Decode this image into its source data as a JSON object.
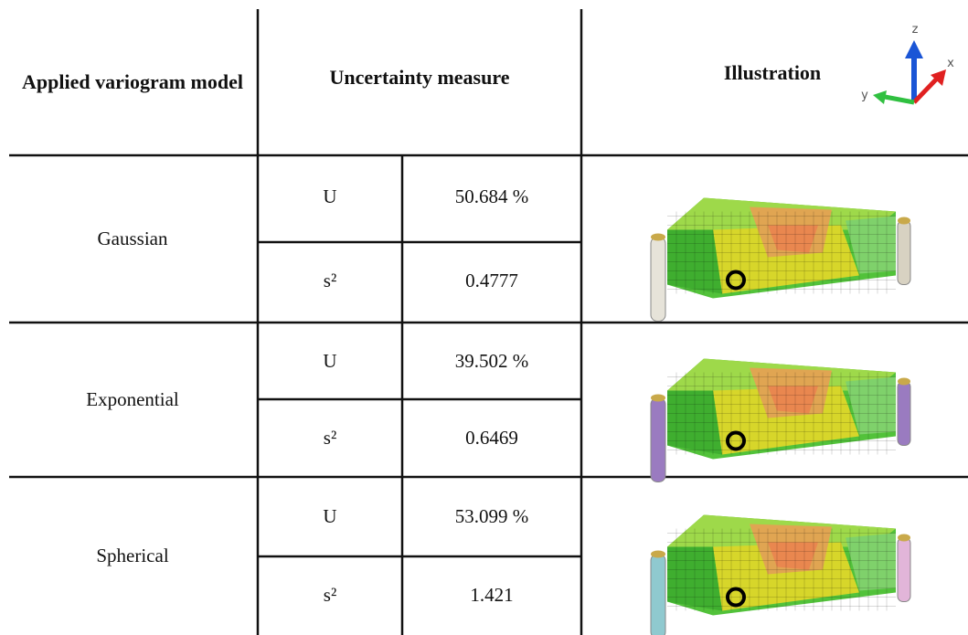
{
  "header": {
    "model": "Applied variogram model",
    "measure": "Uncertainty measure",
    "illustration": "Illustration",
    "axes": {
      "z": "z",
      "x": "x",
      "y": "y"
    }
  },
  "table": {
    "rows": [
      {
        "model": "Gaussian",
        "measures": [
          [
            "U",
            "50.684 %"
          ],
          [
            "s²",
            "0.4777"
          ]
        ]
      },
      {
        "model": "Exponential",
        "measures": [
          [
            "U",
            "39.502 %"
          ],
          [
            "s²",
            "0.6469"
          ]
        ]
      },
      {
        "model": "Spherical",
        "measures": [
          [
            "U",
            "53.099 %"
          ],
          [
            "s²",
            "1.421"
          ]
        ]
      }
    ]
  }
}
